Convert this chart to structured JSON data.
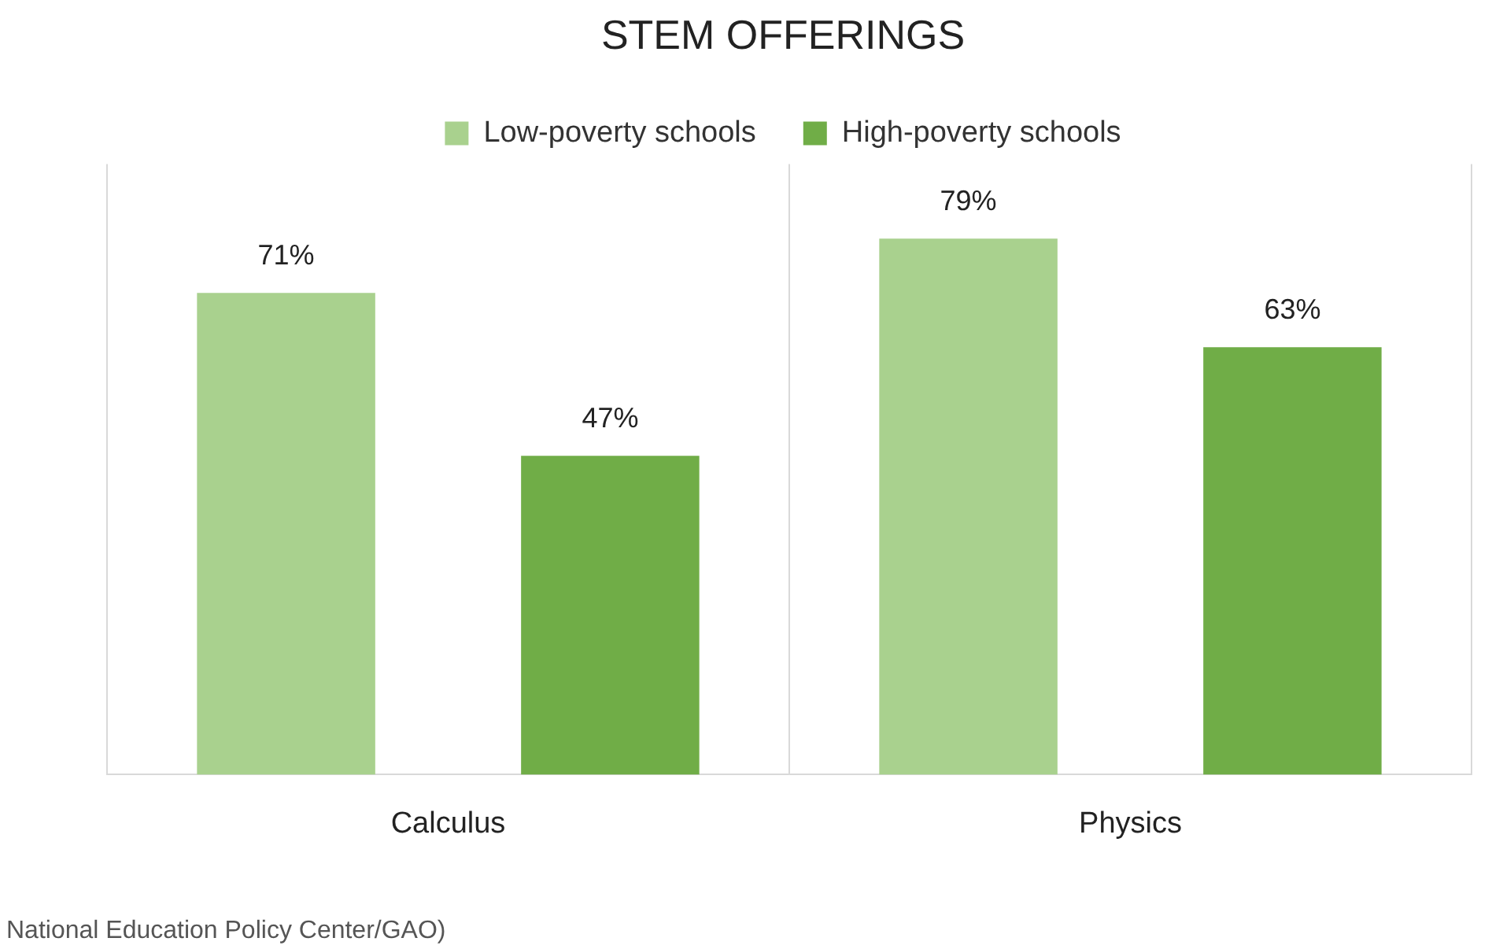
{
  "chart_data": {
    "type": "bar",
    "title": "STEM OFFERINGS",
    "categories": [
      "Calculus",
      "Physics"
    ],
    "series": [
      {
        "name": "Low-poverty schools",
        "color": "#a9d18e",
        "values": [
          71,
          79
        ],
        "value_labels": [
          "71%",
          "79%"
        ]
      },
      {
        "name": "High-poverty schools",
        "color": "#70ad47",
        "values": [
          47,
          63
        ],
        "value_labels": [
          "47%",
          "63%"
        ]
      }
    ],
    "relative": false,
    "ylim": [
      0,
      90
    ],
    "grid": "x",
    "legend": "top",
    "annotations": [
      "National Education Policy Center/GAO)"
    ]
  }
}
